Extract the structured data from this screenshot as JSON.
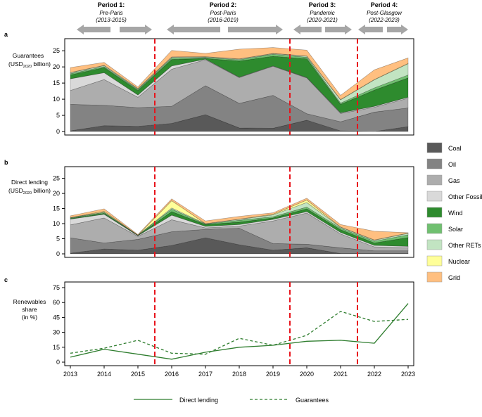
{
  "colors": {
    "Coal": "#595959",
    "Oil": "#838383",
    "Gas": "#adadad",
    "Other Fossil": "#d9d9d9",
    "Wind": "#2e8b2e",
    "Solar": "#70c070",
    "Other RETs": "#c2e4c2",
    "Nuclear": "#ffff99",
    "Grid": "#ffbf80",
    "redline": "#e8141c",
    "line": "#2e7d2e",
    "arrow": "#a6a6a6"
  },
  "periods": [
    {
      "title": "Period 1:",
      "subtitle": "Pre-Paris",
      "years": "(2013-2015)"
    },
    {
      "title": "Period 2:",
      "subtitle": "Post-Paris",
      "years": "(2016-2019)"
    },
    {
      "title": "Period 3:",
      "subtitle": "Pandemic",
      "years": "(2020-2021)"
    },
    {
      "title": "Period 4:",
      "subtitle": "Post-Glasgow",
      "years": "(2022-2023)"
    }
  ],
  "panels": {
    "a": {
      "letter": "a",
      "ylabel1": "Guarantees",
      "ylabel2_pre": "(USD",
      "ylabel2_sub": "2020",
      "ylabel2_post": " billion)"
    },
    "b": {
      "letter": "b",
      "ylabel1": "Direct lending",
      "ylabel2_pre": "(USD",
      "ylabel2_sub": "2020",
      "ylabel2_post": " billion)"
    },
    "c": {
      "letter": "c",
      "ylabel1": "Renewables",
      "ylabel2": "share",
      "ylabel3": "(in %)"
    }
  },
  "chart_data": [
    {
      "type": "area",
      "panel": "a",
      "title": "Guarantees",
      "ylabel": "Guarantees (USD2020 billion)",
      "x": [
        2013,
        2014,
        2015,
        2016,
        2017,
        2018,
        2019,
        2020,
        2021,
        2022,
        2023
      ],
      "ylim": [
        0,
        27
      ],
      "yticks": [
        0,
        5,
        10,
        15,
        20,
        25
      ],
      "period_breaks": [
        2015.5,
        2019.5,
        2021.5
      ],
      "series": [
        {
          "name": "Coal",
          "values": [
            0.2,
            1.8,
            1.6,
            2.5,
            5.2,
            1.1,
            1.0,
            3.5,
            0.2,
            0.0,
            1.5
          ]
        },
        {
          "name": "Oil",
          "values": [
            8.2,
            6.3,
            5.8,
            5.3,
            9.0,
            7.6,
            10.2,
            2.0,
            2.8,
            6.0,
            5.8
          ]
        },
        {
          "name": "Gas",
          "values": [
            4.3,
            8.0,
            3.2,
            11.5,
            8.0,
            8.0,
            9.0,
            11.1,
            2.6,
            1.5,
            3.0
          ]
        },
        {
          "name": "Other Fossil",
          "values": [
            3.6,
            2.1,
            0.7,
            1.0,
            0.2,
            0.1,
            0.1,
            0.1,
            0.2,
            0.3,
            0.3
          ]
        },
        {
          "name": "Wind",
          "values": [
            1.2,
            1.6,
            1.4,
            2.0,
            0.2,
            5.0,
            3.0,
            5.8,
            2.6,
            5.0,
            6.0
          ]
        },
        {
          "name": "Solar",
          "values": [
            0.4,
            0.3,
            0.3,
            0.4,
            0.3,
            0.4,
            0.6,
            0.5,
            0.4,
            0.7,
            0.9
          ]
        },
        {
          "name": "Other RETs",
          "values": [
            0.3,
            0.3,
            0.2,
            0.3,
            0.2,
            0.2,
            0.2,
            0.3,
            1.0,
            2.5,
            3.5
          ]
        },
        {
          "name": "Nuclear",
          "values": [
            0.1,
            0.1,
            0.1,
            0.1,
            0.1,
            0.1,
            0.1,
            0.1,
            0.1,
            0.1,
            0.1
          ]
        },
        {
          "name": "Grid",
          "values": [
            1.5,
            0.9,
            0.5,
            2.0,
            1.0,
            3.0,
            1.8,
            1.8,
            1.3,
            3.0,
            1.7
          ]
        }
      ]
    },
    {
      "type": "area",
      "panel": "b",
      "title": "Direct lending",
      "ylabel": "Direct lending (USD2020 billion)",
      "x": [
        2013,
        2014,
        2015,
        2016,
        2017,
        2018,
        2019,
        2020,
        2021,
        2022,
        2023
      ],
      "ylim": [
        0,
        27
      ],
      "yticks": [
        0,
        5,
        10,
        15,
        20,
        25
      ],
      "period_breaks": [
        2015.5,
        2019.5,
        2021.5
      ],
      "series": [
        {
          "name": "Coal",
          "values": [
            0.2,
            1.6,
            1.2,
            2.8,
            5.3,
            3.0,
            1.2,
            2.0,
            0.1,
            0.1,
            0.1
          ]
        },
        {
          "name": "Oil",
          "values": [
            5.1,
            2.0,
            3.6,
            4.5,
            2.8,
            5.5,
            2.2,
            1.2,
            1.9,
            0.9,
            0.9
          ]
        },
        {
          "name": "Gas",
          "values": [
            4.3,
            8.3,
            1.0,
            4.0,
            0.5,
            0.7,
            7.5,
            10.3,
            4.6,
            1.3,
            1.0
          ]
        },
        {
          "name": "Other Fossil",
          "values": [
            1.9,
            1.2,
            0.2,
            1.5,
            0.5,
            0.5,
            0.5,
            0.5,
            0.5,
            0.5,
            0.5
          ]
        },
        {
          "name": "Wind",
          "values": [
            0.2,
            0.3,
            0.1,
            1.2,
            0.6,
            0.8,
            0.5,
            0.9,
            0.9,
            0.8,
            2.9
          ]
        },
        {
          "name": "Solar",
          "values": [
            0.2,
            0.3,
            0.1,
            0.8,
            0.2,
            0.6,
            0.4,
            0.6,
            0.5,
            0.6,
            0.9
          ]
        },
        {
          "name": "Other RETs",
          "values": [
            0.1,
            0.1,
            0.0,
            0.4,
            0.1,
            0.3,
            0.6,
            1.5,
            0.3,
            0.3,
            0.5
          ]
        },
        {
          "name": "Nuclear",
          "values": [
            0.0,
            0.3,
            0.0,
            2.4,
            0.0,
            0.1,
            0.2,
            0.8,
            0.1,
            0.1,
            0.1
          ]
        },
        {
          "name": "Grid",
          "values": [
            0.6,
            0.8,
            0.2,
            0.6,
            0.9,
            0.9,
            0.5,
            0.6,
            0.8,
            2.9,
            0.1
          ]
        }
      ]
    },
    {
      "type": "line",
      "panel": "c",
      "title": "Renewables share",
      "ylabel": "Renewables share (in %)",
      "xlabel": "",
      "x": [
        2013,
        2014,
        2015,
        2016,
        2017,
        2018,
        2019,
        2020,
        2021,
        2022,
        2023
      ],
      "ylim": [
        0,
        75
      ],
      "yticks": [
        0,
        15,
        30,
        45,
        60,
        75
      ],
      "period_breaks": [
        2015.5,
        2019.5,
        2021.5
      ],
      "series": [
        {
          "name": "Direct lending",
          "style": "solid",
          "values": [
            5,
            13,
            8,
            3,
            10,
            15,
            17,
            21,
            22,
            19,
            59
          ]
        },
        {
          "name": "Guarantees",
          "style": "dashed",
          "values": [
            9,
            14,
            22,
            9,
            8,
            24,
            17,
            27,
            51,
            41,
            43
          ]
        }
      ]
    }
  ]
}
